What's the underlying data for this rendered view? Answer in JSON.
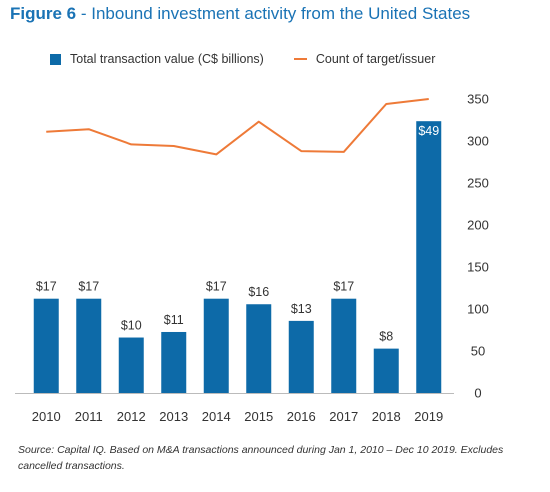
{
  "title": {
    "figure": "Figure 6",
    "separator": " - ",
    "text": "Inbound investment activity from the United States"
  },
  "legend": {
    "bar_label": "Total transaction value (C$ billions)",
    "line_label": "Count of target/issuer"
  },
  "colors": {
    "bar": "#0d6aa8",
    "line": "#ee7a38",
    "title": "#1a73b5",
    "axis": "#bbbbbb"
  },
  "source": "Source: Capital IQ. Based on M&A transactions announced during Jan 1, 2010 – Dec 10 2019. Excludes cancelled transactions.",
  "chart_data": {
    "type": "bar+line",
    "categories": [
      "2010",
      "2011",
      "2012",
      "2013",
      "2014",
      "2015",
      "2016",
      "2017",
      "2018",
      "2019"
    ],
    "series": [
      {
        "name": "Total transaction value (C$ billions)",
        "type": "bar",
        "values": [
          17,
          17,
          10,
          11,
          17,
          16,
          13,
          17,
          8,
          49
        ],
        "labels": [
          "$17",
          "$17",
          "$10",
          "$11",
          "$17",
          "$16",
          "$13",
          "$17",
          "$8",
          "$49"
        ]
      },
      {
        "name": "Count of target/issuer",
        "type": "line",
        "axis": "right",
        "values": [
          311,
          314,
          296,
          294,
          284,
          323,
          288,
          287,
          344,
          350
        ]
      }
    ],
    "right_axis": {
      "ticks": [
        0,
        50,
        100,
        150,
        200,
        250,
        300,
        350
      ],
      "range": [
        0,
        350
      ]
    },
    "bar_axis_range": [
      0,
      53
    ],
    "legend_position": "top",
    "grid": false
  }
}
